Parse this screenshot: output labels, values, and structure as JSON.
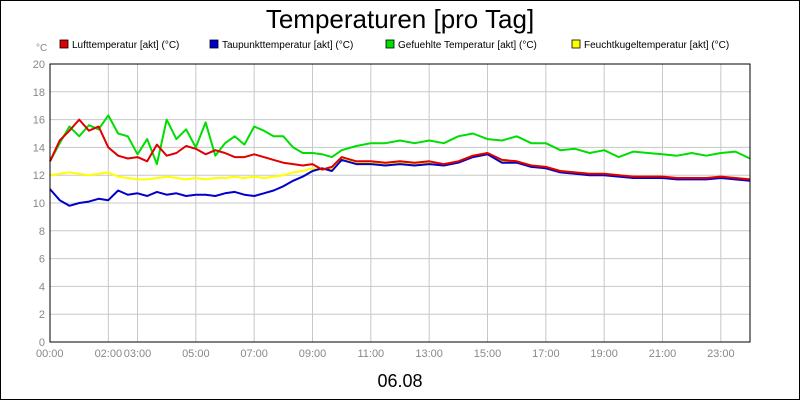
{
  "chart_data": {
    "type": "line",
    "title": "Temperaturen [pro Tag]",
    "date_label": "06.08",
    "y_unit": "°C",
    "ylim": [
      0,
      20
    ],
    "y_ticks": [
      0,
      2,
      4,
      6,
      8,
      10,
      12,
      14,
      16,
      18,
      20
    ],
    "xlim": [
      "00:00",
      "24:00"
    ],
    "x_ticks": [
      "00:00",
      "02:00",
      "03:00",
      "05:00",
      "07:00",
      "09:00",
      "11:00",
      "13:00",
      "15:00",
      "17:00",
      "19:00",
      "21:00",
      "23:00"
    ],
    "grid": true,
    "legend_position": "top",
    "series": [
      {
        "name": "Lufttemperatur [akt] (°C)",
        "color": "#e00000",
        "x": [
          "00:00",
          "00:20",
          "00:40",
          "01:00",
          "01:20",
          "01:40",
          "02:00",
          "02:20",
          "02:40",
          "03:00",
          "03:20",
          "03:40",
          "04:00",
          "04:20",
          "04:40",
          "05:00",
          "05:20",
          "05:40",
          "06:00",
          "06:20",
          "06:40",
          "07:00",
          "07:20",
          "07:40",
          "08:00",
          "08:20",
          "08:40",
          "09:00",
          "09:20",
          "09:40",
          "10:00",
          "10:30",
          "11:00",
          "11:30",
          "12:00",
          "12:30",
          "13:00",
          "13:30",
          "14:00",
          "14:30",
          "15:00",
          "15:30",
          "16:00",
          "16:30",
          "17:00",
          "17:30",
          "18:00",
          "18:30",
          "19:00",
          "19:30",
          "20:00",
          "20:30",
          "21:00",
          "21:30",
          "22:00",
          "22:30",
          "23:00",
          "23:30",
          "24:00"
        ],
        "y": [
          13.0,
          14.5,
          15.2,
          16.0,
          15.2,
          15.5,
          14.0,
          13.4,
          13.2,
          13.3,
          13.0,
          14.2,
          13.4,
          13.6,
          14.1,
          13.9,
          13.5,
          13.8,
          13.6,
          13.3,
          13.3,
          13.5,
          13.3,
          13.1,
          12.9,
          12.8,
          12.7,
          12.8,
          12.4,
          12.6,
          13.3,
          13.0,
          13.0,
          12.9,
          13.0,
          12.9,
          13.0,
          12.8,
          13.0,
          13.4,
          13.6,
          13.1,
          13.0,
          12.7,
          12.6,
          12.3,
          12.2,
          12.1,
          12.1,
          12.0,
          11.9,
          11.9,
          11.9,
          11.8,
          11.8,
          11.8,
          11.9,
          11.8,
          11.7
        ]
      },
      {
        "name": "Taupunkttemperatur [akt] (°C)",
        "color": "#0000cc",
        "x": [
          "00:00",
          "00:20",
          "00:40",
          "01:00",
          "01:20",
          "01:40",
          "02:00",
          "02:20",
          "02:40",
          "03:00",
          "03:20",
          "03:40",
          "04:00",
          "04:20",
          "04:40",
          "05:00",
          "05:20",
          "05:40",
          "06:00",
          "06:20",
          "06:40",
          "07:00",
          "07:20",
          "07:40",
          "08:00",
          "08:20",
          "08:40",
          "09:00",
          "09:20",
          "09:40",
          "10:00",
          "10:30",
          "11:00",
          "11:30",
          "12:00",
          "12:30",
          "13:00",
          "13:30",
          "14:00",
          "14:30",
          "15:00",
          "15:30",
          "16:00",
          "16:30",
          "17:00",
          "17:30",
          "18:00",
          "18:30",
          "19:00",
          "19:30",
          "20:00",
          "20:30",
          "21:00",
          "21:30",
          "22:00",
          "22:30",
          "23:00",
          "23:30",
          "24:00"
        ],
        "y": [
          11.0,
          10.2,
          9.8,
          10.0,
          10.1,
          10.3,
          10.2,
          10.9,
          10.6,
          10.7,
          10.5,
          10.8,
          10.6,
          10.7,
          10.5,
          10.6,
          10.6,
          10.5,
          10.7,
          10.8,
          10.6,
          10.5,
          10.7,
          10.9,
          11.2,
          11.6,
          11.9,
          12.3,
          12.5,
          12.3,
          13.1,
          12.8,
          12.8,
          12.7,
          12.8,
          12.7,
          12.8,
          12.7,
          12.9,
          13.3,
          13.5,
          12.9,
          12.9,
          12.6,
          12.5,
          12.2,
          12.1,
          12.0,
          12.0,
          11.9,
          11.8,
          11.8,
          11.8,
          11.7,
          11.7,
          11.7,
          11.8,
          11.7,
          11.6
        ]
      },
      {
        "name": "Gefuehlte Temperatur [akt] (°C)",
        "color": "#00dd00",
        "x": [
          "00:00",
          "00:20",
          "00:40",
          "01:00",
          "01:20",
          "01:40",
          "02:00",
          "02:20",
          "02:40",
          "03:00",
          "03:20",
          "03:40",
          "04:00",
          "04:20",
          "04:40",
          "05:00",
          "05:20",
          "05:40",
          "06:00",
          "06:20",
          "06:40",
          "07:00",
          "07:20",
          "07:40",
          "08:00",
          "08:20",
          "08:40",
          "09:00",
          "09:20",
          "09:40",
          "10:00",
          "10:30",
          "11:00",
          "11:30",
          "12:00",
          "12:30",
          "13:00",
          "13:30",
          "14:00",
          "14:30",
          "15:00",
          "15:30",
          "16:00",
          "16:30",
          "17:00",
          "17:30",
          "18:00",
          "18:30",
          "19:00",
          "19:30",
          "20:00",
          "20:30",
          "21:00",
          "21:30",
          "22:00",
          "22:30",
          "23:00",
          "23:30",
          "24:00"
        ],
        "y": [
          13.0,
          14.3,
          15.5,
          14.8,
          15.6,
          15.3,
          16.3,
          15.0,
          14.8,
          13.5,
          14.6,
          12.8,
          16.0,
          14.6,
          15.3,
          14.0,
          15.8,
          13.4,
          14.3,
          14.8,
          14.2,
          15.5,
          15.2,
          14.8,
          14.8,
          14.0,
          13.6,
          13.6,
          13.5,
          13.3,
          13.8,
          14.1,
          14.3,
          14.3,
          14.5,
          14.3,
          14.5,
          14.3,
          14.8,
          15.0,
          14.6,
          14.5,
          14.8,
          14.3,
          14.3,
          13.8,
          13.9,
          13.6,
          13.8,
          13.3,
          13.7,
          13.6,
          13.5,
          13.4,
          13.6,
          13.4,
          13.6,
          13.7,
          13.2
        ]
      },
      {
        "name": "Feuchtkugeltemperatur [akt] (°C)",
        "color": "#ffff00",
        "x": [
          "00:00",
          "00:20",
          "00:40",
          "01:00",
          "01:20",
          "01:40",
          "02:00",
          "02:20",
          "02:40",
          "03:00",
          "03:20",
          "03:40",
          "04:00",
          "04:20",
          "04:40",
          "05:00",
          "05:20",
          "05:40",
          "06:00",
          "06:20",
          "06:40",
          "07:00",
          "07:20",
          "07:40",
          "08:00",
          "08:20",
          "08:40",
          "09:00",
          "09:20",
          "09:40",
          "10:00",
          "10:30",
          "11:00",
          "11:30",
          "12:00",
          "12:30",
          "13:00",
          "13:30",
          "14:00",
          "14:30",
          "15:00",
          "15:30",
          "16:00",
          "16:30",
          "17:00",
          "17:30",
          "18:00",
          "18:30",
          "19:00",
          "19:30",
          "20:00",
          "20:30",
          "21:00",
          "21:30",
          "22:00",
          "22:30",
          "23:00",
          "23:30",
          "24:00"
        ],
        "y": [
          12.0,
          12.1,
          12.2,
          12.1,
          12.0,
          12.1,
          12.2,
          11.9,
          11.8,
          11.7,
          11.7,
          11.8,
          11.9,
          11.8,
          11.7,
          11.8,
          11.7,
          11.8,
          11.8,
          11.9,
          11.8,
          11.9,
          11.8,
          11.9,
          12.0,
          12.2,
          12.3,
          12.5,
          12.4,
          12.5,
          13.2,
          12.9,
          12.9,
          12.8,
          12.9,
          12.8,
          12.9,
          12.8,
          13.0,
          13.4,
          13.6,
          13.0,
          13.0,
          12.7,
          12.6,
          12.3,
          12.2,
          12.1,
          12.1,
          12.0,
          11.9,
          11.9,
          11.9,
          11.8,
          11.8,
          11.8,
          11.9,
          11.8,
          11.7
        ]
      }
    ]
  }
}
